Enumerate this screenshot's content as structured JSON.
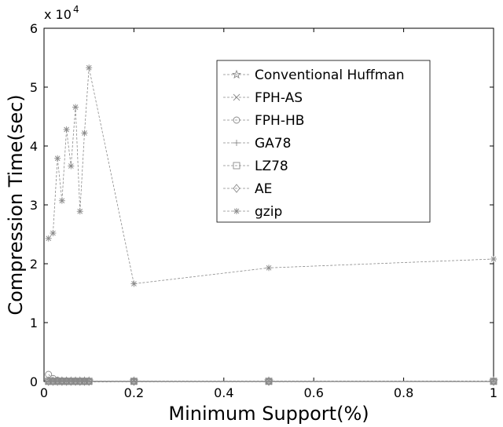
{
  "chart_data": {
    "type": "line",
    "title": "",
    "xlabel": "Minimum Support(%)",
    "ylabel": "Compression Time(sec)",
    "xlim": [
      0,
      1
    ],
    "ylim": [
      0,
      60000
    ],
    "y_multiplier_label": "x 10",
    "y_multiplier_exponent": "4",
    "x_ticks": [
      "0",
      "0.2",
      "0.4",
      "0.6",
      "0.8",
      "1"
    ],
    "y_ticks": [
      "0",
      "1",
      "2",
      "3",
      "4",
      "5",
      "6"
    ],
    "grid": false,
    "legend_position": "top-right",
    "line_color": "#8a8a8a",
    "series": [
      {
        "name": "Conventional Huffman",
        "marker": "pentagram",
        "x": [
          0.01,
          0.02,
          0.03,
          0.04,
          0.05,
          0.06,
          0.07,
          0.08,
          0.09,
          0.1,
          0.2,
          0.5,
          1.0
        ],
        "y": [
          60,
          60,
          60,
          60,
          60,
          60,
          60,
          60,
          60,
          60,
          60,
          60,
          60
        ]
      },
      {
        "name": "FPH-AS",
        "marker": "x",
        "x": [
          0.01,
          0.02,
          0.03,
          0.04,
          0.05,
          0.06,
          0.07,
          0.08,
          0.09,
          0.1,
          0.2,
          0.5,
          1.0
        ],
        "y": [
          60,
          60,
          60,
          60,
          60,
          60,
          60,
          60,
          60,
          60,
          60,
          60,
          60
        ]
      },
      {
        "name": "FPH-HB",
        "marker": "circle",
        "x": [
          0.01,
          0.02,
          0.03,
          0.04,
          0.05,
          0.06,
          0.07,
          0.08,
          0.09,
          0.1,
          0.2,
          0.5,
          1.0
        ],
        "y": [
          1200,
          500,
          200,
          120,
          100,
          80,
          70,
          60,
          60,
          50,
          40,
          30,
          20
        ]
      },
      {
        "name": "GA78",
        "marker": "plus",
        "x": [
          0.01,
          0.02,
          0.03,
          0.04,
          0.05,
          0.06,
          0.07,
          0.08,
          0.09,
          0.1,
          0.2,
          0.5,
          1.0
        ],
        "y": [
          40,
          40,
          40,
          40,
          40,
          40,
          40,
          40,
          40,
          40,
          40,
          40,
          40
        ]
      },
      {
        "name": "LZ78",
        "marker": "square",
        "x": [
          0.01,
          0.02,
          0.03,
          0.04,
          0.05,
          0.06,
          0.07,
          0.08,
          0.09,
          0.1,
          0.2,
          0.5,
          1.0
        ],
        "y": [
          30,
          30,
          30,
          30,
          30,
          30,
          30,
          30,
          30,
          30,
          30,
          30,
          30
        ]
      },
      {
        "name": "AE",
        "marker": "diamond",
        "x": [
          0.01,
          0.02,
          0.03,
          0.04,
          0.05,
          0.06,
          0.07,
          0.08,
          0.09,
          0.1,
          0.2,
          0.5,
          1.0
        ],
        "y": [
          20,
          20,
          20,
          20,
          20,
          20,
          20,
          20,
          20,
          20,
          20,
          20,
          20
        ]
      },
      {
        "name": "gzip",
        "marker": "asterisk",
        "x": [
          0.01,
          0.02,
          0.03,
          0.04,
          0.05,
          0.06,
          0.07,
          0.08,
          0.09,
          0.1,
          0.2,
          0.5,
          1.0
        ],
        "y": [
          24300,
          25200,
          37900,
          30700,
          42800,
          36600,
          46600,
          28900,
          42200,
          53300,
          16600,
          19300,
          20800
        ]
      }
    ]
  }
}
